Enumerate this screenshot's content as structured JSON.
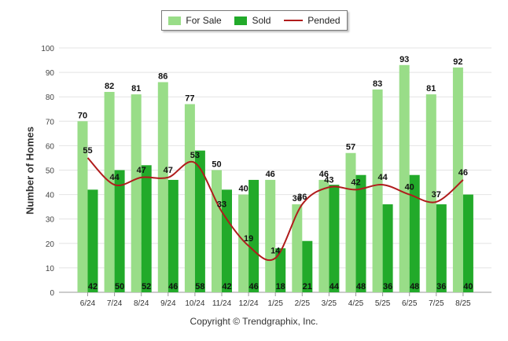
{
  "legend": {
    "items": [
      {
        "name": "For Sale",
        "color": "#99dd88",
        "kind": "bar"
      },
      {
        "name": "Sold",
        "color": "#22aa2a",
        "kind": "bar"
      },
      {
        "name": "Pended",
        "color": "#b01c1c",
        "kind": "line"
      }
    ]
  },
  "copyright": "Copyright © Trendgraphix, Inc.",
  "chart_data": {
    "type": "bar",
    "ylabel": "Number of Homes",
    "xlabel": "",
    "ylim": [
      0,
      100
    ],
    "yticks": [
      0,
      10,
      20,
      30,
      40,
      50,
      60,
      70,
      80,
      90,
      100
    ],
    "grid": true,
    "legend_position": "top-center",
    "categories": [
      "6/24",
      "7/24",
      "8/24",
      "9/24",
      "10/24",
      "11/24",
      "12/24",
      "1/25",
      "2/25",
      "3/25",
      "4/25",
      "5/25",
      "6/25",
      "7/25",
      "8/25"
    ],
    "series": [
      {
        "name": "For Sale",
        "type": "bar",
        "color": "#99dd88",
        "values": [
          70,
          82,
          81,
          86,
          77,
          50,
          40,
          46,
          36,
          46,
          57,
          83,
          93,
          81,
          92
        ]
      },
      {
        "name": "Sold",
        "type": "bar",
        "color": "#22aa2a",
        "values": [
          42,
          50,
          52,
          46,
          58,
          42,
          46,
          18,
          21,
          44,
          48,
          36,
          48,
          36,
          40
        ]
      },
      {
        "name": "Pended",
        "type": "line",
        "color": "#b01c1c",
        "values": [
          55,
          44,
          47,
          47,
          53,
          33,
          19,
          14,
          36,
          43,
          42,
          44,
          40,
          37,
          46
        ]
      }
    ]
  }
}
